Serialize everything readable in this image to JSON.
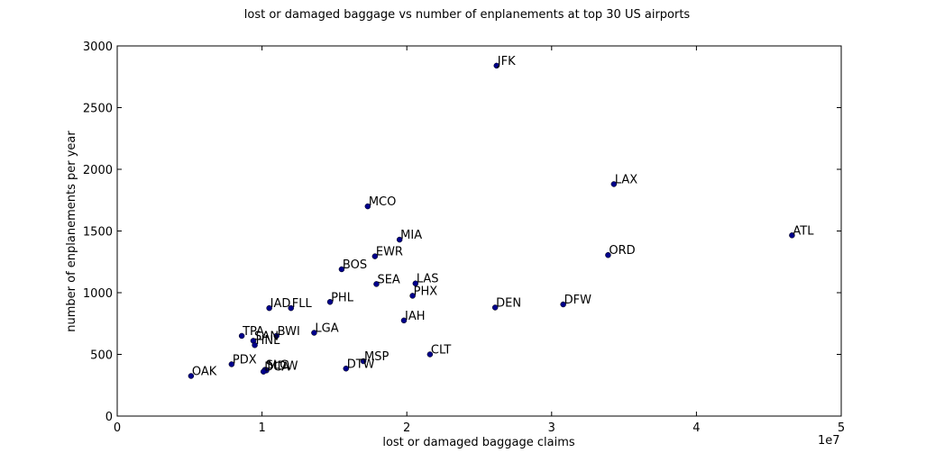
{
  "chart_data": {
    "type": "scatter",
    "title": "lost or damaged baggage vs number of enplanements at top 30 US airports",
    "xlabel": "lost or damaged baggage claims",
    "ylabel": "number of enplanements per year",
    "x_scale_note": "1e7",
    "xlim": [
      0,
      5
    ],
    "ylim": [
      0,
      3000
    ],
    "x_ticks": [
      0,
      1,
      2,
      3,
      4,
      5
    ],
    "y_ticks": [
      0,
      500,
      1000,
      1500,
      2000,
      2500,
      3000
    ],
    "x_unit_multiplier": 10000000,
    "marker_color": "#00008b",
    "points": [
      {
        "label": "JFK",
        "x": 2.62,
        "y": 2840
      },
      {
        "label": "LAX",
        "x": 3.43,
        "y": 1880
      },
      {
        "label": "ATL",
        "x": 4.66,
        "y": 1465
      },
      {
        "label": "MCO",
        "x": 1.73,
        "y": 1700
      },
      {
        "label": "MIA",
        "x": 1.95,
        "y": 1430
      },
      {
        "label": "ORD",
        "x": 3.39,
        "y": 1305
      },
      {
        "label": "EWR",
        "x": 1.78,
        "y": 1295
      },
      {
        "label": "BOS",
        "x": 1.55,
        "y": 1190
      },
      {
        "label": "SEA",
        "x": 1.79,
        "y": 1070
      },
      {
        "label": "LAS",
        "x": 2.06,
        "y": 1075
      },
      {
        "label": "PHX",
        "x": 2.04,
        "y": 975
      },
      {
        "label": "PHL",
        "x": 1.47,
        "y": 925
      },
      {
        "label": "DEN",
        "x": 2.61,
        "y": 880
      },
      {
        "label": "DFW",
        "x": 3.08,
        "y": 905
      },
      {
        "label": "IAD",
        "x": 1.05,
        "y": 875
      },
      {
        "label": "FLL",
        "x": 1.2,
        "y": 875
      },
      {
        "label": "IAH",
        "x": 1.98,
        "y": 775
      },
      {
        "label": "LGA",
        "x": 1.36,
        "y": 675
      },
      {
        "label": "BWI",
        "x": 1.1,
        "y": 650
      },
      {
        "label": "TPA",
        "x": 0.86,
        "y": 650
      },
      {
        "label": "SAN",
        "x": 0.94,
        "y": 610
      },
      {
        "label": "HNL",
        "x": 0.95,
        "y": 575
      },
      {
        "label": "CLT",
        "x": 2.16,
        "y": 500
      },
      {
        "label": "MSP",
        "x": 1.7,
        "y": 445
      },
      {
        "label": "PDX",
        "x": 0.79,
        "y": 420
      },
      {
        "label": "DTW",
        "x": 1.58,
        "y": 385
      },
      {
        "label": "SLC",
        "x": 1.02,
        "y": 375
      },
      {
        "label": "MDW",
        "x": 1.03,
        "y": 370
      },
      {
        "label": "DCA",
        "x": 1.01,
        "y": 360
      },
      {
        "label": "OAK",
        "x": 0.51,
        "y": 325
      }
    ]
  }
}
